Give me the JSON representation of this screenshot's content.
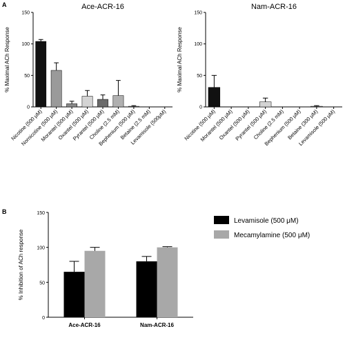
{
  "panels": {
    "A": {
      "letter": "A"
    },
    "B": {
      "letter": "B"
    }
  },
  "chart_data": [
    {
      "type": "bar",
      "title": "Ace-ACR-16",
      "ylabel": "% Maximal  ACh Response",
      "xlabel": "",
      "ylim": [
        0,
        150
      ],
      "yticks": [
        0,
        50,
        100,
        150
      ],
      "categories": [
        "Nicotine (500 μM)",
        "Nornicotine (500 μM)",
        "Morantel (500 μM)",
        "Oxantel (500 μM)",
        "Pyrantel (500 μM)",
        "Choline (2.5 mM)",
        "Bephenium (500 μM)",
        "Betaine (2.5 mM)",
        "Levamisole (500μM)"
      ],
      "values": [
        104,
        58,
        5,
        17,
        12,
        18,
        1,
        0,
        0
      ],
      "errors": [
        3,
        12,
        4,
        9,
        7,
        24,
        1,
        0,
        0
      ],
      "colors": [
        "#111111",
        "#9a9a9a",
        "#8a8a8a",
        "#d4d4d4",
        "#6a6a6a",
        "#b0b0b0",
        "#888888",
        "#888888",
        "#888888"
      ]
    },
    {
      "type": "bar",
      "title": "Nam-ACR-16",
      "ylabel": "% Maximal  ACh Response",
      "xlabel": "",
      "ylim": [
        0,
        150
      ],
      "yticks": [
        0,
        50,
        100,
        150
      ],
      "categories": [
        "Nicotine (500 μM)",
        "Morantel (500 μM)",
        "Oxantel (500 μM)",
        "Pyrantel (500 μM)",
        "Choline (2.5 mM)",
        "Bephenium (500 μM)",
        "Betaine (300 μM)",
        "Levamisole (500 μM)"
      ],
      "values": [
        31,
        0,
        0,
        8,
        0,
        0,
        1,
        0
      ],
      "errors": [
        19,
        0,
        0,
        6,
        0,
        0,
        1,
        0
      ],
      "colors": [
        "#111111",
        "#888888",
        "#888888",
        "#d4d4d4",
        "#888888",
        "#888888",
        "#888888",
        "#888888"
      ]
    },
    {
      "type": "bar",
      "title": "",
      "ylabel": "% Inhibition of ACh response",
      "xlabel": "",
      "ylim": [
        0,
        150
      ],
      "yticks": [
        0,
        50,
        100,
        150
      ],
      "categories": [
        "Ace-ACR-16",
        "Nam-ACR-16"
      ],
      "series": [
        {
          "name": "Levamisole (500 μM)",
          "color": "#000000",
          "values": [
            65,
            80
          ],
          "errors": [
            15,
            7
          ]
        },
        {
          "name": "Mecamylamine (500 μM)",
          "color": "#a8a8a8",
          "values": [
            95,
            100
          ],
          "errors": [
            5,
            1
          ]
        }
      ],
      "legend": "top-right"
    }
  ]
}
